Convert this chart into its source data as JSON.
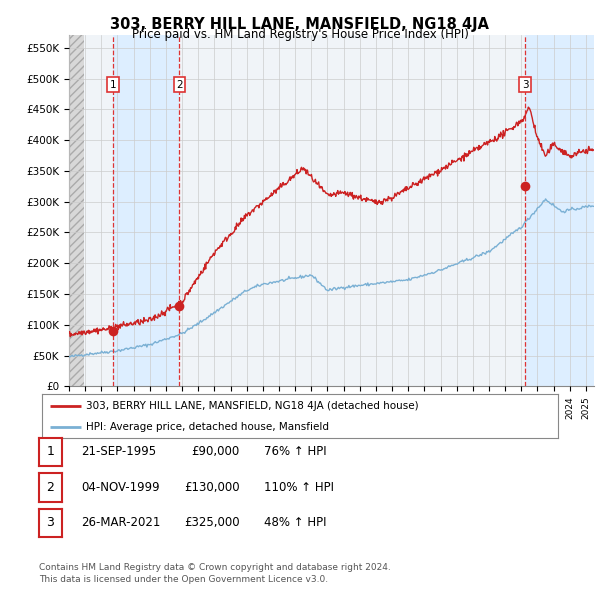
{
  "title": "303, BERRY HILL LANE, MANSFIELD, NG18 4JA",
  "subtitle": "Price paid vs. HM Land Registry's House Price Index (HPI)",
  "ylabel_values": [
    "£0",
    "£50K",
    "£100K",
    "£150K",
    "£200K",
    "£250K",
    "£300K",
    "£350K",
    "£400K",
    "£450K",
    "£500K",
    "£550K"
  ],
  "ytick_values": [
    0,
    50000,
    100000,
    150000,
    200000,
    250000,
    300000,
    350000,
    400000,
    450000,
    500000,
    550000
  ],
  "ylim": [
    0,
    570000
  ],
  "xlim_start": 1993.0,
  "xlim_end": 2025.5,
  "sale_points": [
    {
      "label": "1",
      "date": 1995.72,
      "price": 90000
    },
    {
      "label": "2",
      "date": 1999.84,
      "price": 130000
    },
    {
      "label": "3",
      "date": 2021.23,
      "price": 325000
    }
  ],
  "vline_dates": [
    1995.72,
    1999.84,
    2021.23
  ],
  "hatch_end": 1993.9,
  "blue_band_1_start": 1995.72,
  "blue_band_1_end": 1999.84,
  "blue_band_2_start": 2021.23,
  "blue_band_2_end": 2025.5,
  "red_line_color": "#cc2222",
  "blue_line_color": "#7ab0d4",
  "vline_color": "#dd3333",
  "dot_color": "#cc2222",
  "grid_color": "#cccccc",
  "hatch_bg_color": "#d8d8d8",
  "blue_band_color": "#ddeeff",
  "background_color": "#ffffff",
  "plot_bg_color": "#f0f4f8",
  "legend_line1": "303, BERRY HILL LANE, MANSFIELD, NG18 4JA (detached house)",
  "legend_line2": "HPI: Average price, detached house, Mansfield",
  "table_rows": [
    {
      "num": "1",
      "date": "21-SEP-1995",
      "price": "£90,000",
      "hpi": "76% ↑ HPI"
    },
    {
      "num": "2",
      "date": "04-NOV-1999",
      "price": "£130,000",
      "hpi": "110% ↑ HPI"
    },
    {
      "num": "3",
      "date": "26-MAR-2021",
      "price": "£325,000",
      "hpi": "48% ↑ HPI"
    }
  ],
  "footnote1": "Contains HM Land Registry data © Crown copyright and database right 2024.",
  "footnote2": "This data is licensed under the Open Government Licence v3.0.",
  "title_fontsize": 10.5,
  "subtitle_fontsize": 8.5,
  "axis_fontsize": 7.5,
  "table_fontsize": 8.5,
  "legend_fontsize": 7.5,
  "footnote_fontsize": 6.5
}
